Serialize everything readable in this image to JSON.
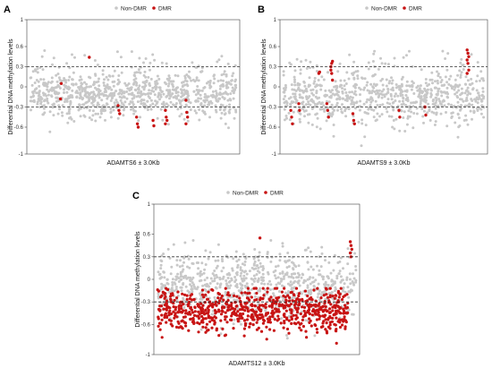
{
  "colors": {
    "non_dmr": "#c8c8c8",
    "dmr": "#c81414",
    "threshold_line": "#333333"
  },
  "chart_data": [
    {
      "panel": "A",
      "type": "scatter",
      "xlabel": "ADAMTS6 ± 3.0Kb",
      "ylabel": "Differential DNA methylation levels",
      "ylim": [
        -1,
        1
      ],
      "yticks": [
        -1,
        -0.6,
        -0.3,
        0,
        0.3,
        0.6,
        1
      ],
      "threshold_lines": [
        0.3,
        -0.3
      ],
      "legend": [
        "Non-DMR",
        "DMR"
      ],
      "legend_position": "top",
      "grid": false,
      "x_range": [
        0,
        1
      ],
      "non_dmr": {
        "count": 900,
        "center": -0.1,
        "spread": 0.18,
        "seed": 11
      },
      "dmr_clusters": [
        {
          "x": 0.15,
          "y": [
            -0.18,
            0.05
          ]
        },
        {
          "x": 0.29,
          "y": [
            0.44
          ]
        },
        {
          "x": 0.43,
          "y": [
            -0.28,
            -0.35,
            -0.4
          ]
        },
        {
          "x": 0.52,
          "y": [
            -0.45,
            -0.55,
            -0.6
          ]
        },
        {
          "x": 0.6,
          "y": [
            -0.5,
            -0.58
          ]
        },
        {
          "x": 0.66,
          "y": [
            -0.35,
            -0.45,
            -0.5,
            -0.55
          ]
        },
        {
          "x": 0.76,
          "y": [
            -0.2,
            -0.38,
            -0.45,
            -0.55
          ]
        }
      ]
    },
    {
      "panel": "B",
      "type": "scatter",
      "xlabel": "ADAMTS9 ± 3.0Kb",
      "ylabel": "Differential DNA methylation levels",
      "ylim": [
        -1,
        1
      ],
      "yticks": [
        -1,
        -0.6,
        -0.3,
        0,
        0.3,
        0.6,
        1
      ],
      "threshold_lines": [
        0.3,
        -0.3
      ],
      "legend": [
        "Non-DMR",
        "DMR"
      ],
      "legend_position": "top",
      "grid": false,
      "x_range": [
        0,
        1
      ],
      "non_dmr": {
        "count": 800,
        "center": -0.15,
        "spread": 0.2,
        "seed": 23
      },
      "dmr_clusters": [
        {
          "x": 0.04,
          "y": [
            -0.35,
            -0.45,
            -0.55
          ]
        },
        {
          "x": 0.08,
          "y": [
            -0.25,
            -0.35
          ]
        },
        {
          "x": 0.18,
          "y": [
            0.2,
            0.22
          ]
        },
        {
          "x": 0.24,
          "y": [
            0.3,
            0.35,
            0.38,
            0.25,
            0.2,
            0.1
          ]
        },
        {
          "x": 0.22,
          "y": [
            -0.25,
            -0.35,
            -0.45
          ]
        },
        {
          "x": 0.35,
          "y": [
            -0.4,
            -0.5,
            -0.55
          ]
        },
        {
          "x": 0.58,
          "y": [
            -0.35,
            -0.45
          ]
        },
        {
          "x": 0.71,
          "y": [
            -0.3,
            -0.42
          ]
        },
        {
          "x": 0.92,
          "y": [
            0.55,
            0.5,
            0.45,
            0.4,
            0.35,
            0.25,
            0.2
          ]
        }
      ]
    },
    {
      "panel": "C",
      "type": "scatter",
      "xlabel": "ADAMTS12 ± 3.0Kb",
      "ylabel": "Differential DNA methylation levels",
      "ylim": [
        -1,
        1
      ],
      "yticks": [
        -1,
        -0.6,
        -0.3,
        0,
        0.3,
        0.6,
        1
      ],
      "threshold_lines": [
        0.3,
        -0.3
      ],
      "legend": [
        "Non-DMR",
        "DMR"
      ],
      "legend_position": "top",
      "grid": false,
      "x_range": [
        0,
        1
      ],
      "non_dmr": {
        "count": 800,
        "center": -0.1,
        "spread": 0.22,
        "seed": 37
      },
      "dmr_bulk": {
        "count": 750,
        "center": -0.42,
        "spread": 0.14,
        "seed": 41
      },
      "dmr_clusters": [
        {
          "x": 0.52,
          "y": [
            0.55
          ]
        },
        {
          "x": 0.975,
          "y": [
            0.5,
            0.45,
            0.4,
            0.35,
            0.3
          ]
        }
      ]
    }
  ]
}
